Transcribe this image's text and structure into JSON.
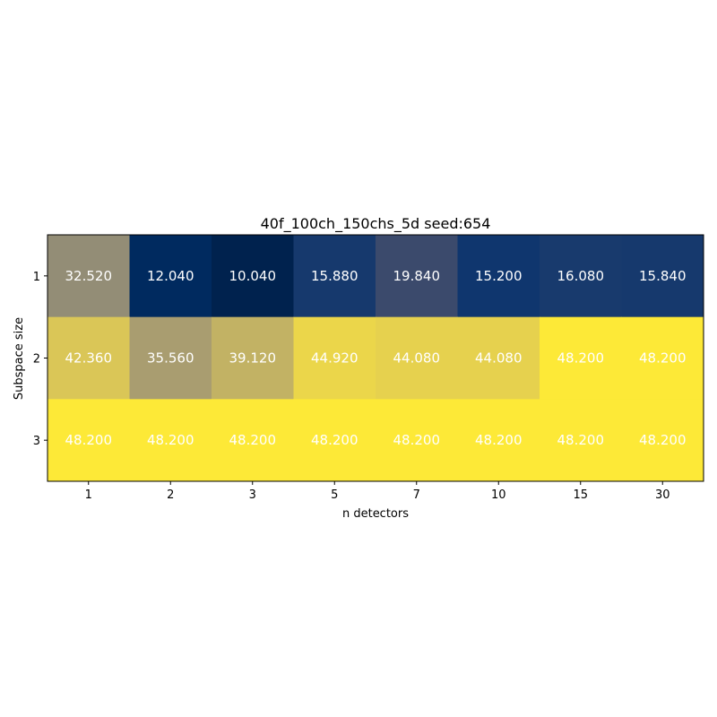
{
  "chart_data": {
    "type": "heatmap",
    "title": "40f_100ch_150chs_5d seed:654",
    "xlabel": "n detectors",
    "ylabel": "Subspace size",
    "x_categories": [
      "1",
      "2",
      "3",
      "5",
      "7",
      "10",
      "15",
      "30"
    ],
    "y_categories": [
      "1",
      "2",
      "3"
    ],
    "values": [
      [
        32.52,
        12.04,
        10.04,
        15.88,
        19.84,
        15.2,
        16.08,
        15.84
      ],
      [
        42.36,
        35.56,
        39.12,
        44.92,
        44.08,
        44.08,
        48.2,
        48.2
      ],
      [
        48.2,
        48.2,
        48.2,
        48.2,
        48.2,
        48.2,
        48.2,
        48.2
      ]
    ],
    "cell_labels": [
      [
        "32.520",
        "12.040",
        "10.040",
        "15.880",
        "19.840",
        "15.200",
        "16.080",
        "15.840"
      ],
      [
        "42.360",
        "35.560",
        "39.120",
        "44.920",
        "44.080",
        "44.080",
        "48.200",
        "48.200"
      ],
      [
        "48.200",
        "48.200",
        "48.200",
        "48.200",
        "48.200",
        "48.200",
        "48.200",
        "48.200"
      ]
    ],
    "colormap": "cividis",
    "color_range": [
      10.04,
      48.2
    ],
    "colorbar": false,
    "grid": false
  }
}
